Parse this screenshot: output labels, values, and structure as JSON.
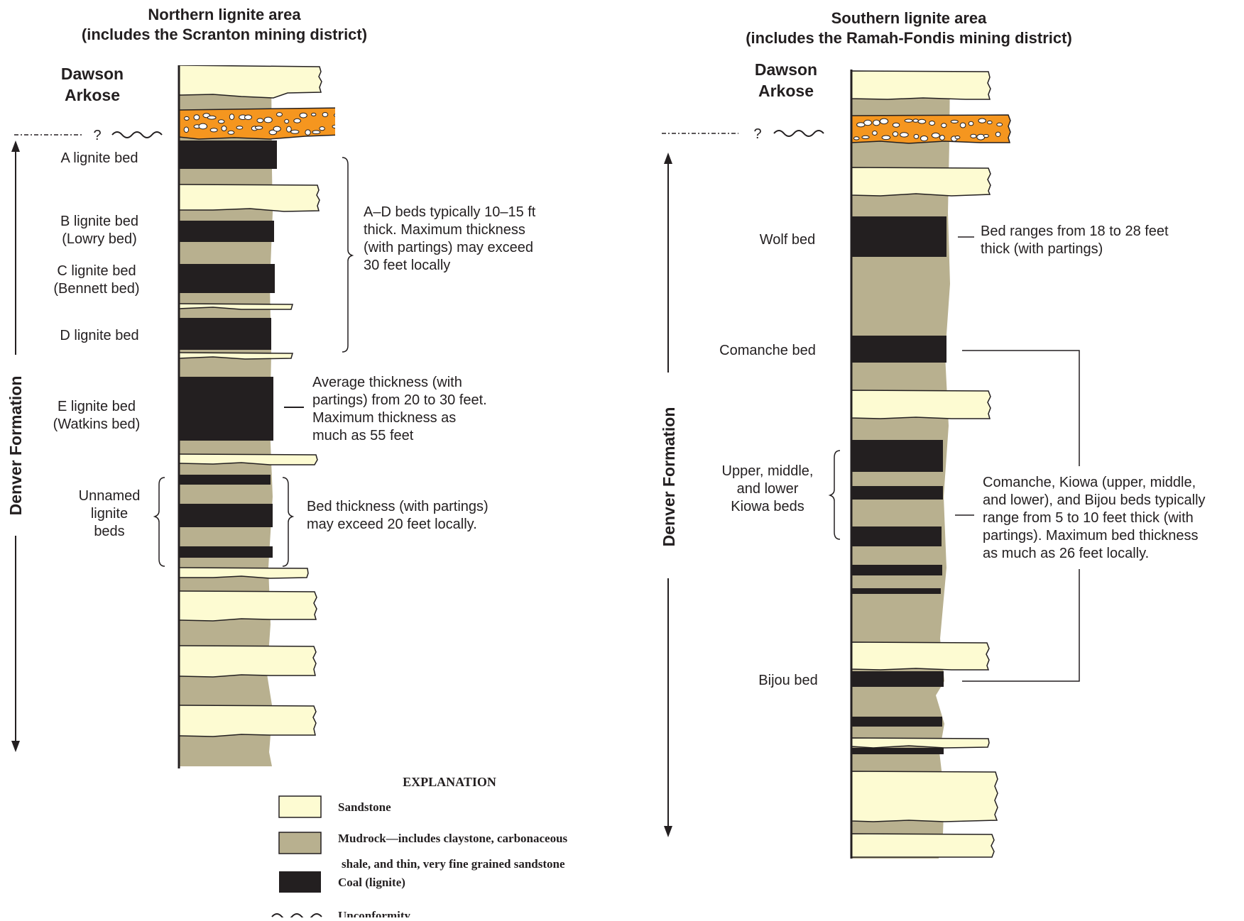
{
  "colors": {
    "sandstone": "#fdfbd2",
    "mudrock": "#b8b08f",
    "coal": "#231f20",
    "conglomerate": "#f5961f",
    "line": "#231f20"
  },
  "north": {
    "title_line1": "Northern lignite area",
    "title_line2": "(includes the Scranton mining district)",
    "dawson_line1": "Dawson",
    "dawson_line2": "Arkose",
    "question": "?",
    "formation": "Denver Formation",
    "bed_a": "A lignite bed",
    "bed_b_1": "B lignite bed",
    "bed_b_2": "(Lowry bed)",
    "bed_c_1": "C lignite bed",
    "bed_c_2": "(Bennett bed)",
    "bed_d": "D lignite bed",
    "bed_e_1": "E lignite bed",
    "bed_e_2": "(Watkins bed)",
    "unnamed_1": "Unnamed",
    "unnamed_2": "lignite",
    "unnamed_3": "beds",
    "note_ad": [
      "A–D beds typically 10–15 ft",
      "thick. Maximum thickness",
      "(with partings) may exceed",
      "30 feet locally"
    ],
    "note_e": [
      "Average thickness (with",
      "partings) from 20 to 30 feet.",
      "Maximum thickness as",
      "much as 55 feet"
    ],
    "note_unnamed": [
      "Bed thickness (with partings)",
      "may exceed 20 feet locally."
    ]
  },
  "south": {
    "title_line1": "Southern lignite area",
    "title_line2": "(includes the Ramah-Fondis mining district)",
    "dawson_line1": "Dawson",
    "dawson_line2": "Arkose",
    "question": "?",
    "formation": "Denver Formation",
    "bed_wolf": "Wolf bed",
    "bed_comanche": "Comanche bed",
    "kiowa_1": "Upper, middle,",
    "kiowa_2": "and lower",
    "kiowa_3": "Kiowa beds",
    "bed_bijou": "Bijou bed",
    "note_wolf": [
      "Bed ranges from 18 to 28 feet",
      "thick (with partings)"
    ],
    "note_group": [
      "Comanche, Kiowa (upper, middle,",
      "and lower), and Bijou beds typically",
      "range from 5 to 10 feet thick (with",
      "partings).  Maximum bed thickness",
      "as much as 26 feet locally."
    ]
  },
  "legend": {
    "title": "EXPLANATION",
    "sandstone": "Sandstone",
    "mudrock_1": "Mudrock—includes claystone, carbonaceous",
    "mudrock_2": "shale, and thin, very fine grained sandstone",
    "coal": "Coal (lignite)",
    "unconformity": "Unconformity"
  }
}
